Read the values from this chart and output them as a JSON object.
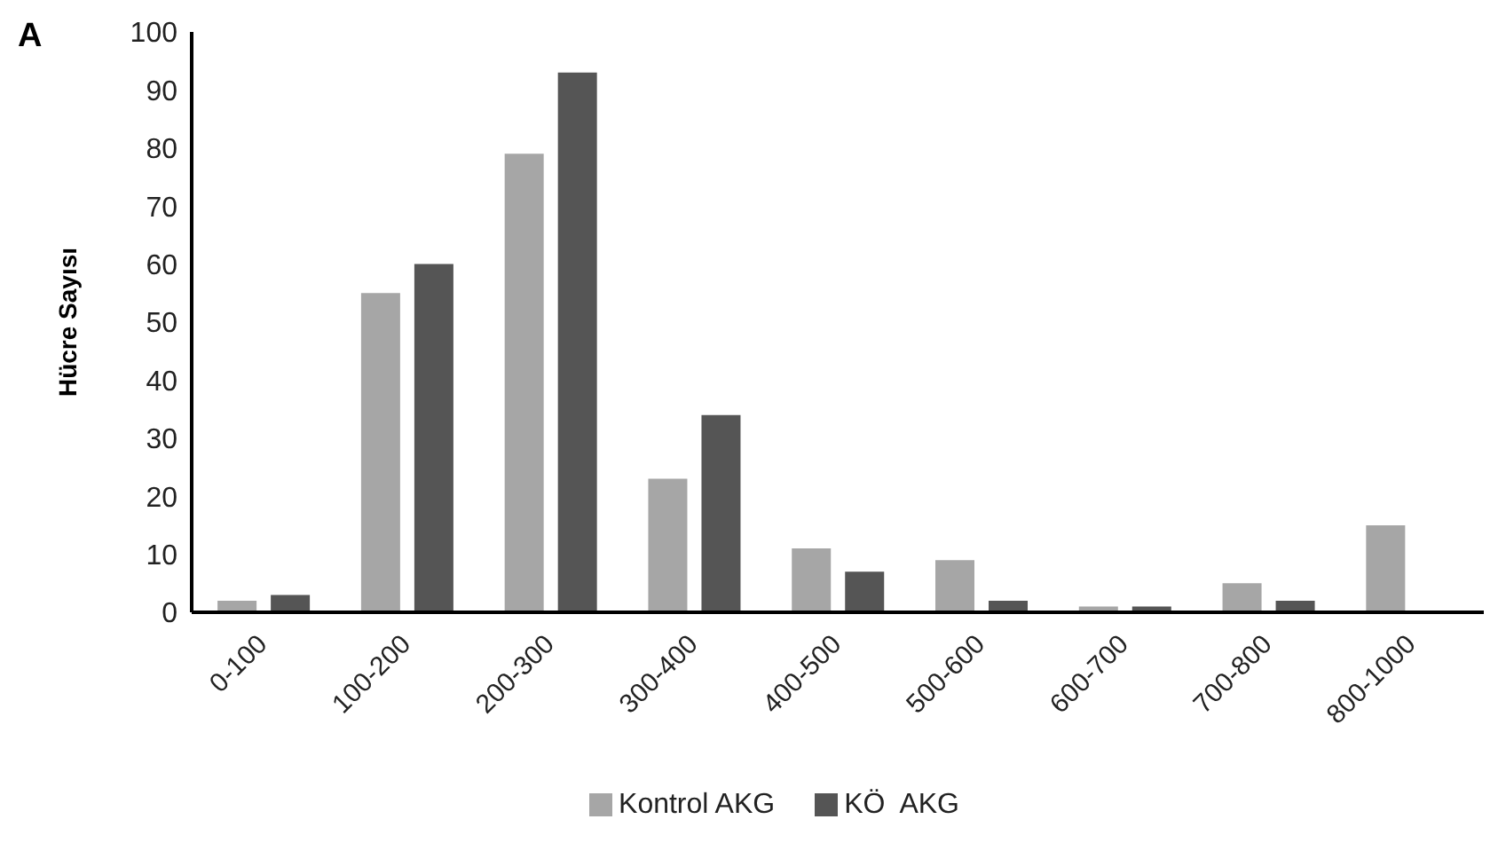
{
  "chart_data": {
    "type": "bar",
    "ylabel": "Hücre Sayısı",
    "annotations": [
      "A"
    ],
    "categories": [
      "0-100",
      "100-200",
      "200-300",
      "300-400",
      "400-500",
      "500-600",
      "600-700",
      "700-800",
      "800-1000"
    ],
    "series": [
      {
        "name": "Kontrol AKG",
        "color": "#a6a6a6",
        "values": [
          2,
          55,
          79,
          23,
          11,
          9,
          1,
          5,
          15
        ]
      },
      {
        "name": "KÖ  AKG",
        "color": "#555555",
        "values": [
          3,
          60,
          93,
          34,
          7,
          2,
          1,
          2,
          null
        ]
      }
    ],
    "ylim": [
      0,
      100
    ],
    "yticks": [
      0,
      10,
      20,
      30,
      40,
      50,
      60,
      70,
      80,
      90,
      100
    ],
    "grid": false,
    "legend": "bottom"
  }
}
